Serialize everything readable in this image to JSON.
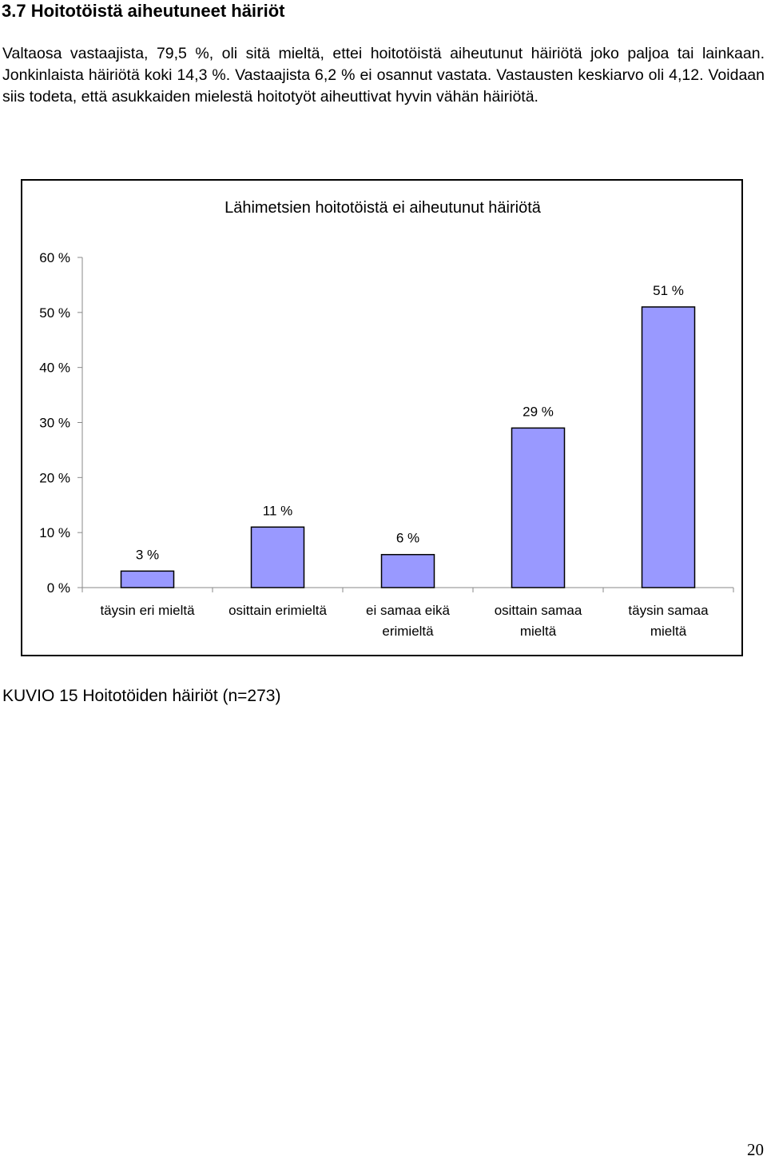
{
  "document": {
    "heading": "3.7 Hoitotöistä aiheutuneet häiriöt",
    "paragraph": "Valtaosa vastaajista, 79,5 %, oli sitä mieltä, ettei hoitotöistä aiheutunut häiriötä joko paljoa tai lainkaan. Jonkinlaista häiriötä koki 14,3 %. Vastaajista 6,2 % ei osannut vastata. Vastausten keskiarvo oli 4,12. Voidaan siis todeta, että asukkaiden mielestä hoitotyöt aiheuttivat hyvin vähän häiriötä.",
    "caption": "KUVIO 15 Hoitotöiden häiriöt (n=273)",
    "page_number": "20"
  },
  "chart_data": {
    "type": "bar",
    "title": "Lähimetsien hoitotöistä ei aiheutunut häiriötä",
    "categories": [
      [
        "täysin eri mieltä"
      ],
      [
        "osittain erimieltä"
      ],
      [
        "ei samaa eikä",
        "erimieltä"
      ],
      [
        "osittain samaa",
        "mieltä"
      ],
      [
        "täysin samaa",
        "mieltä"
      ]
    ],
    "values": [
      3,
      11,
      6,
      29,
      51
    ],
    "value_labels": [
      "3 %",
      "11 %",
      "6 %",
      "29 %",
      "51 %"
    ],
    "yticks": [
      0,
      10,
      20,
      30,
      40,
      50,
      60
    ],
    "ytick_labels": [
      "0 %",
      "10 %",
      "20 %",
      "30 %",
      "40 %",
      "50 %",
      "60 %"
    ],
    "ylim": [
      0,
      60
    ],
    "xlabel": "",
    "ylabel": "",
    "grid": false,
    "bar_color": "#9999ff",
    "bar_edge_color": "#000000"
  }
}
